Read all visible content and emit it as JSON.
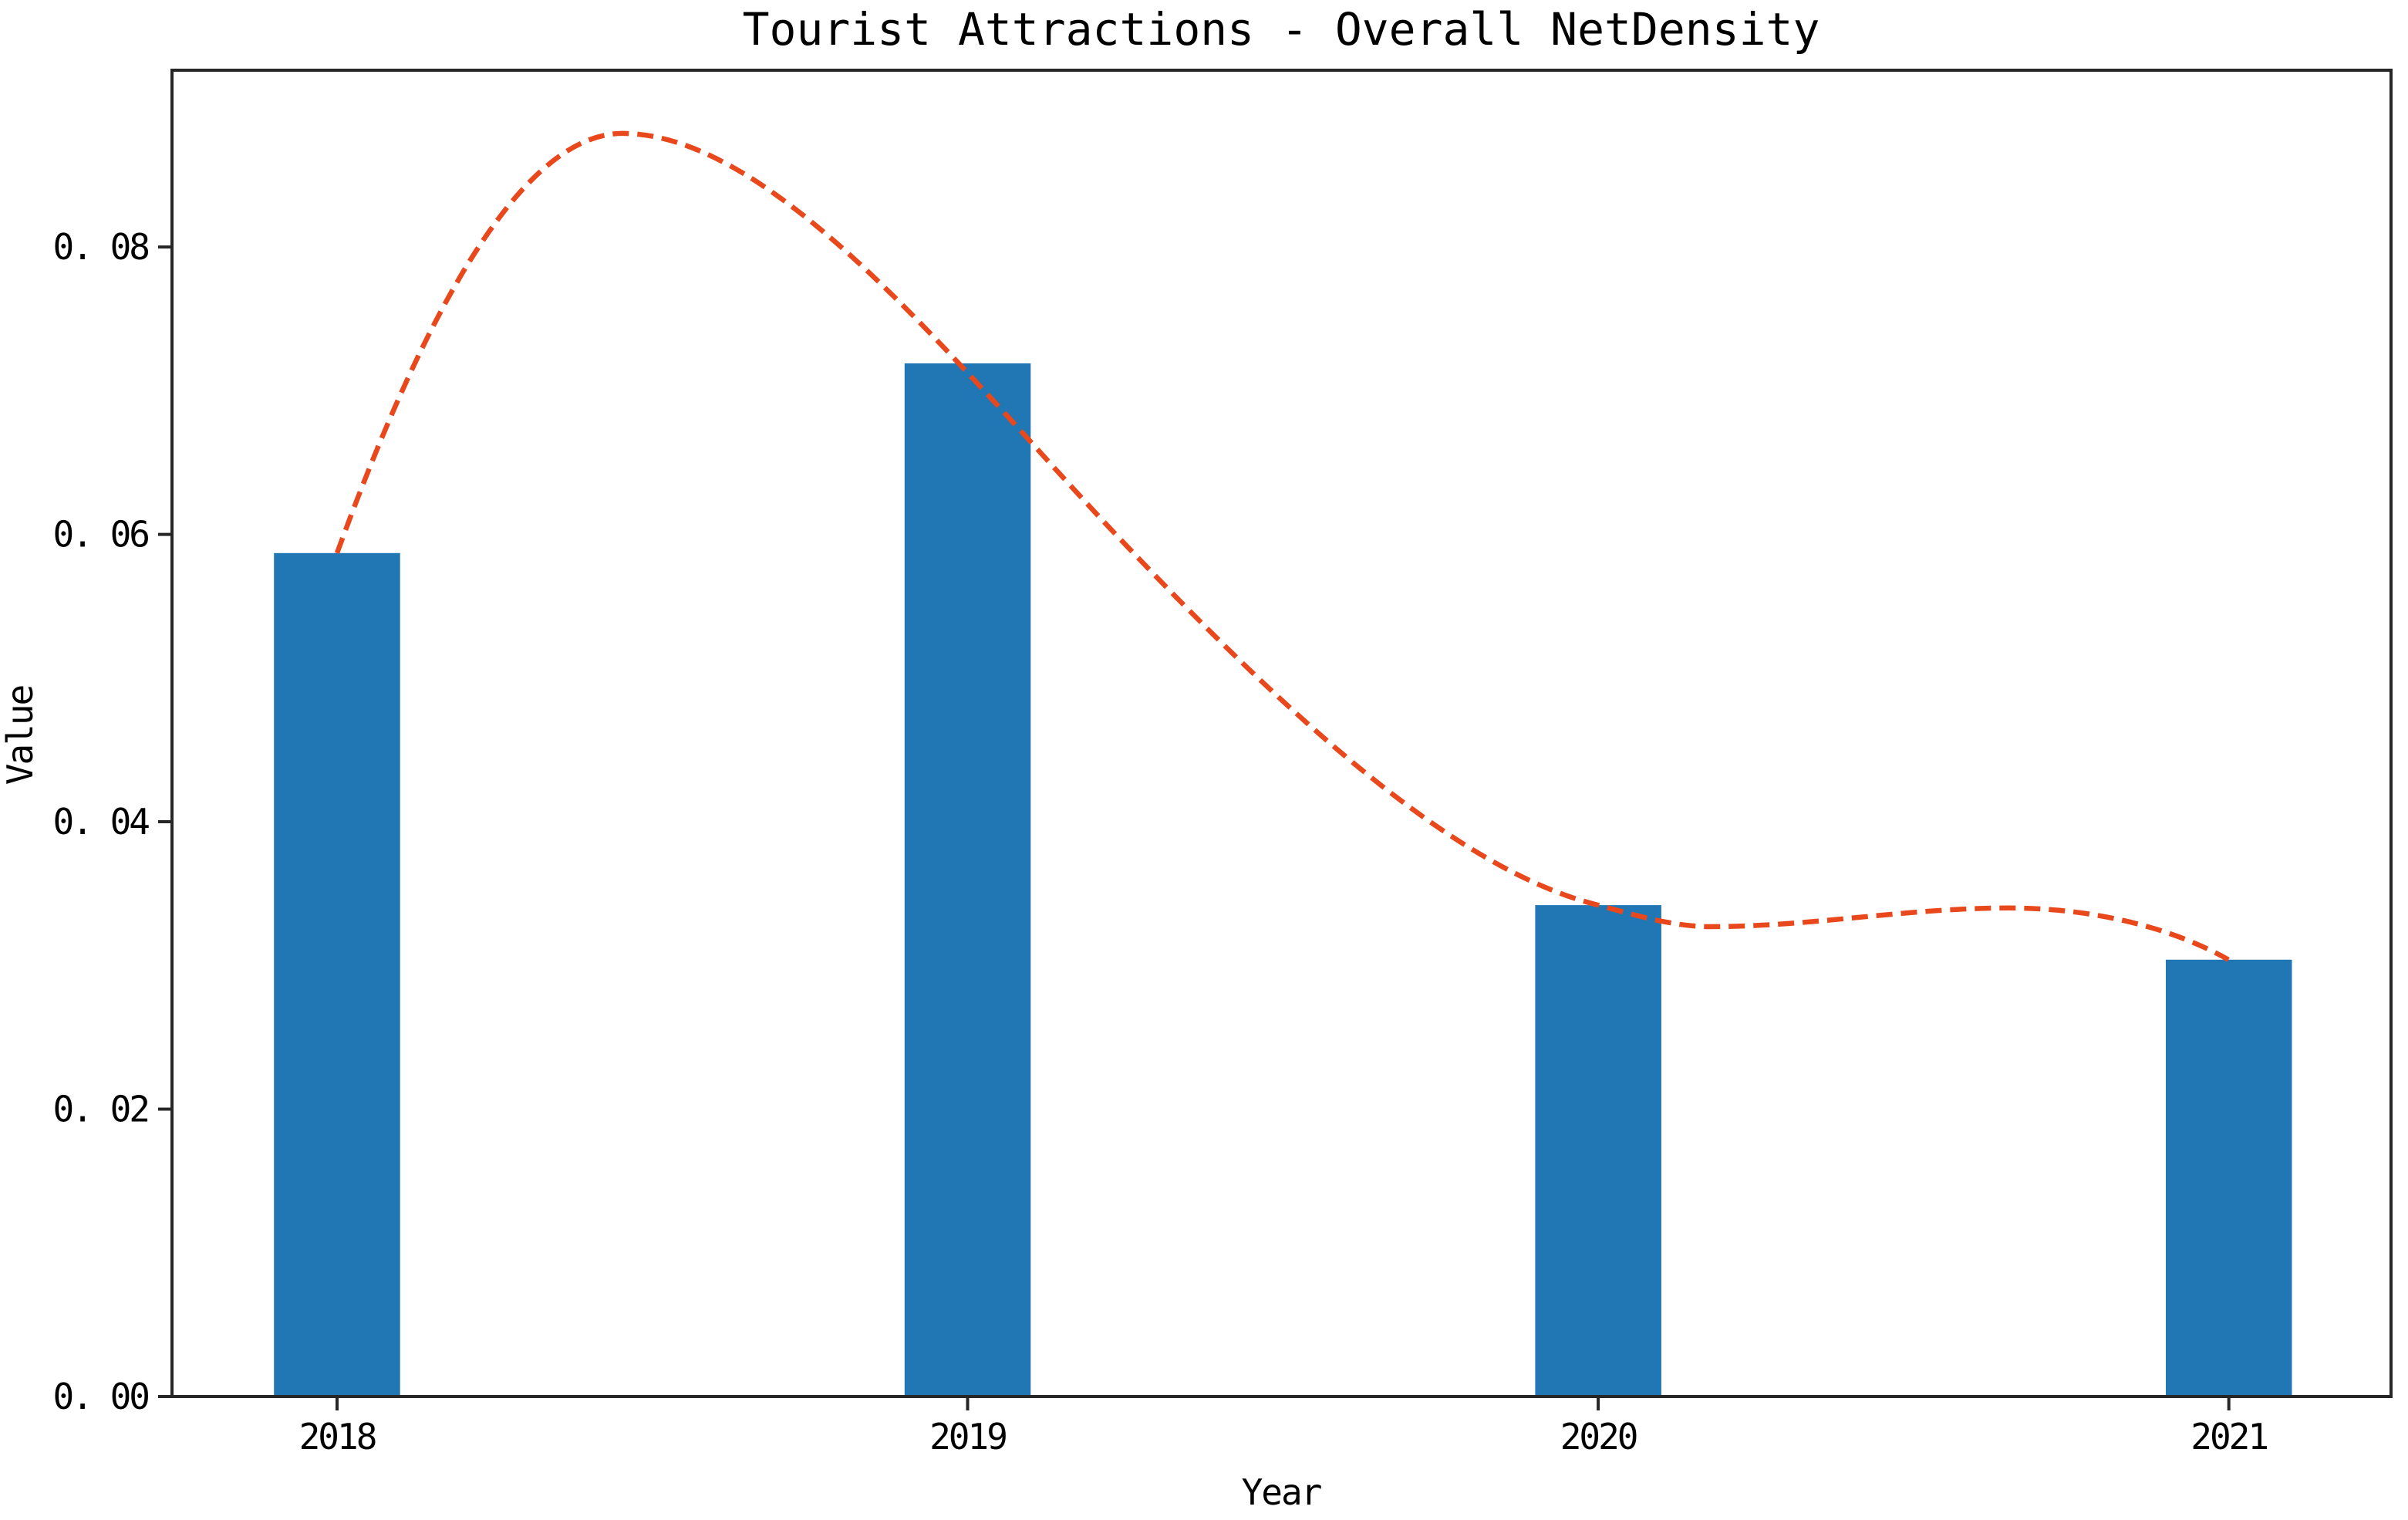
{
  "chart_data": {
    "type": "bar",
    "title": "Tourist Attractions - Overall NetDensity",
    "xlabel": "Year",
    "ylabel": "Value",
    "categories": [
      "2018",
      "2019",
      "2020",
      "2021"
    ],
    "values": [
      0.0587,
      0.0719,
      0.0342,
      0.0304
    ],
    "bar_color": "#2077b4",
    "bar_width": 0.2,
    "xlim": [
      -0.2617,
      3.2572
    ],
    "ylim": [
      0,
      0.0923
    ],
    "grid": false,
    "legend": null,
    "background_color": "#ffffff",
    "spine_color": "#262626",
    "text_color": "#000000",
    "xticks": {
      "positions": [
        0,
        1,
        2,
        3
      ],
      "labels": [
        "2018",
        "2019",
        "2020",
        "2021"
      ]
    },
    "yticks": {
      "values": [
        0.0,
        0.02,
        0.04,
        0.06,
        0.08
      ],
      "labels": [
        "0. 00",
        "0. 02",
        "0. 04",
        "0. 06",
        "0. 08"
      ]
    },
    "trend_line": {
      "color": "#e8481c",
      "line_style": "dashed",
      "passes_through_bar_tops": true,
      "peak_value": 0.088,
      "path": [
        [
          "M",
          0,
          0.0587
        ],
        [
          "C",
          0.1015,
          0.0709,
          0.2667,
          0.0879,
          0.4526,
          0.0879
        ],
        [
          "C",
          0.7009,
          0.0879,
          1.0006,
          0.0708,
          1.2392,
          0.0598
        ],
        [
          "C",
          1.4961,
          0.0479,
          1.7676,
          0.0367,
          2.0,
          0.0342
        ],
        [
          "C",
          2.0587,
          0.0335,
          2.1199,
          0.0327,
          2.1761,
          0.0327
        ],
        [
          "C",
          2.34,
          0.0327,
          2.4869,
          0.034,
          2.6508,
          0.034
        ],
        [
          "C",
          2.7927,
          0.034,
          2.915,
          0.0325,
          2.9994,
          0.0304
        ]
      ]
    }
  }
}
